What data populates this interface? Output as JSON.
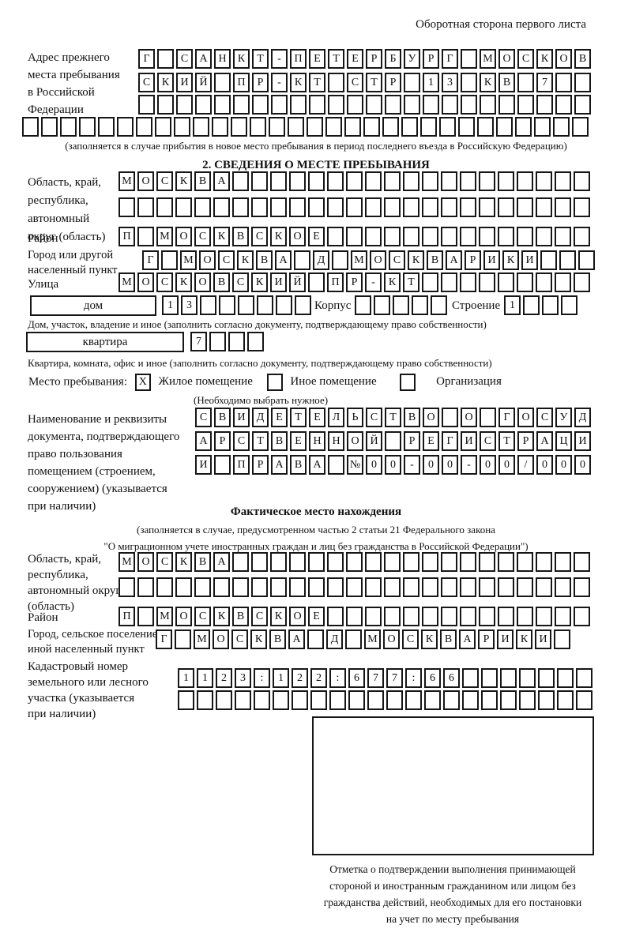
{
  "page": {
    "header_note": "Оборотная сторона первого листа"
  },
  "prev_address": {
    "label": "Адрес прежнего\nместа пребывания\nв Российской\nФедерации",
    "rows": [
      {
        "cells": "Г САНКТ-ПЕТЕРБУРГ МОСКОВ",
        "count": 24
      },
      {
        "cells": "СКИЙ ПР-КТ СТР 13 КВ 7",
        "count": 24
      },
      {
        "cells": "",
        "count": 24
      },
      {
        "cells": "",
        "count": 30
      }
    ],
    "note": "(заполняется в случае прибытия в новое место пребывания в период последнего въезда в Российскую Федерацию)"
  },
  "section2": {
    "title": "2. СВЕДЕНИЯ О МЕСТЕ ПРЕБЫВАНИЯ",
    "region": {
      "label": "Область, край,\nреспублика,\nавтономный\nокруг (область)",
      "rows": [
        {
          "cells": "МОСКВА",
          "count": 25
        },
        {
          "cells": "",
          "count": 25
        }
      ]
    },
    "district": {
      "label": "Район",
      "row": {
        "cells": "П МОСКВСКОЕ",
        "count": 25
      }
    },
    "city": {
      "label": "Город или другой\nнаселенный пункт",
      "row": {
        "cells": "Г МОСКВА Д МОСКВАРИКИ",
        "count": 24
      }
    },
    "street": {
      "label": "Улица",
      "row": {
        "cells": "МОСКОВСКИЙ ПР-КТ",
        "count": 25
      }
    },
    "house": {
      "box_label": "дом",
      "digits": {
        "cells": "13",
        "count": 8
      },
      "korpus_label": "Корпус",
      "korpus": {
        "cells": "",
        "count": 5
      },
      "stroenie_label": "Строение",
      "stroenie": {
        "cells": "1",
        "count": 4
      },
      "caption": "Дом, участок, владение и иное (заполнить согласно документу, подтверждающему право собственности)"
    },
    "apartment": {
      "box_label": "квартира",
      "digits": {
        "cells": "7",
        "count": 4
      },
      "caption": "Квартира, комната, офис и иное (заполнить согласно документу, подтверждающему право собственности)"
    },
    "stay_type": {
      "label": "Место пребывания:",
      "options": [
        {
          "label": "Жилое помещение",
          "checked": "X"
        },
        {
          "label": "Иное помещение",
          "checked": ""
        },
        {
          "label": "Организация",
          "checked": ""
        }
      ],
      "hint": "(Необходимо выбрать нужное)"
    },
    "document": {
      "label": "Наименование и реквизиты\nдокумента, подтверждающего\nправо пользования\nпомещением (строением,\nсооружением) (указывается\nпри наличии)",
      "rows": [
        {
          "cells": "СВИДЕТЕЛЬСТВО О ГОСУД",
          "count": 21
        },
        {
          "cells": "АРСТВЕННОЙ РЕГИСТРАЦИ",
          "count": 21
        },
        {
          "cells": "И ПРАВА №00-00-00/000",
          "count": 21
        }
      ]
    }
  },
  "actual_location": {
    "title": "Фактическое место нахождения",
    "note": "(заполняется в случае, предусмотренном частью 2 статьи 21 Федерального закона\n\"О миграционном учете иностранных граждан и лиц без гражданства в Российской Федерации\")",
    "region": {
      "label": "Область, край,\nреспублика,\nавтономный округ\n(область)",
      "rows": [
        {
          "cells": "МОСКВА",
          "count": 25
        },
        {
          "cells": "",
          "count": 25
        }
      ]
    },
    "district": {
      "label": "Район",
      "row": {
        "cells": "П МОСКВСКОЕ",
        "count": 25
      }
    },
    "city": {
      "label": "Город, сельское поселение,\nиной населенный пункт",
      "row": {
        "cells": "Г МОСКВА Д МОСКВАРИКИ",
        "count": 22
      }
    },
    "cadastre": {
      "label": "Кадастровый номер\nземельного или лесного\nучастка (указывается\nпри наличии)",
      "rows": [
        {
          "cells": "1123:122:677:66",
          "count": 22
        },
        {
          "cells": "",
          "count": 22
        }
      ]
    },
    "stamp_caption": "Отметка о подтверждении выполнения принимающей\nстороной и иностранным гражданином или лицом без\nгражданства действий, необходимых для его постановки\nна учет по месту пребывания"
  }
}
